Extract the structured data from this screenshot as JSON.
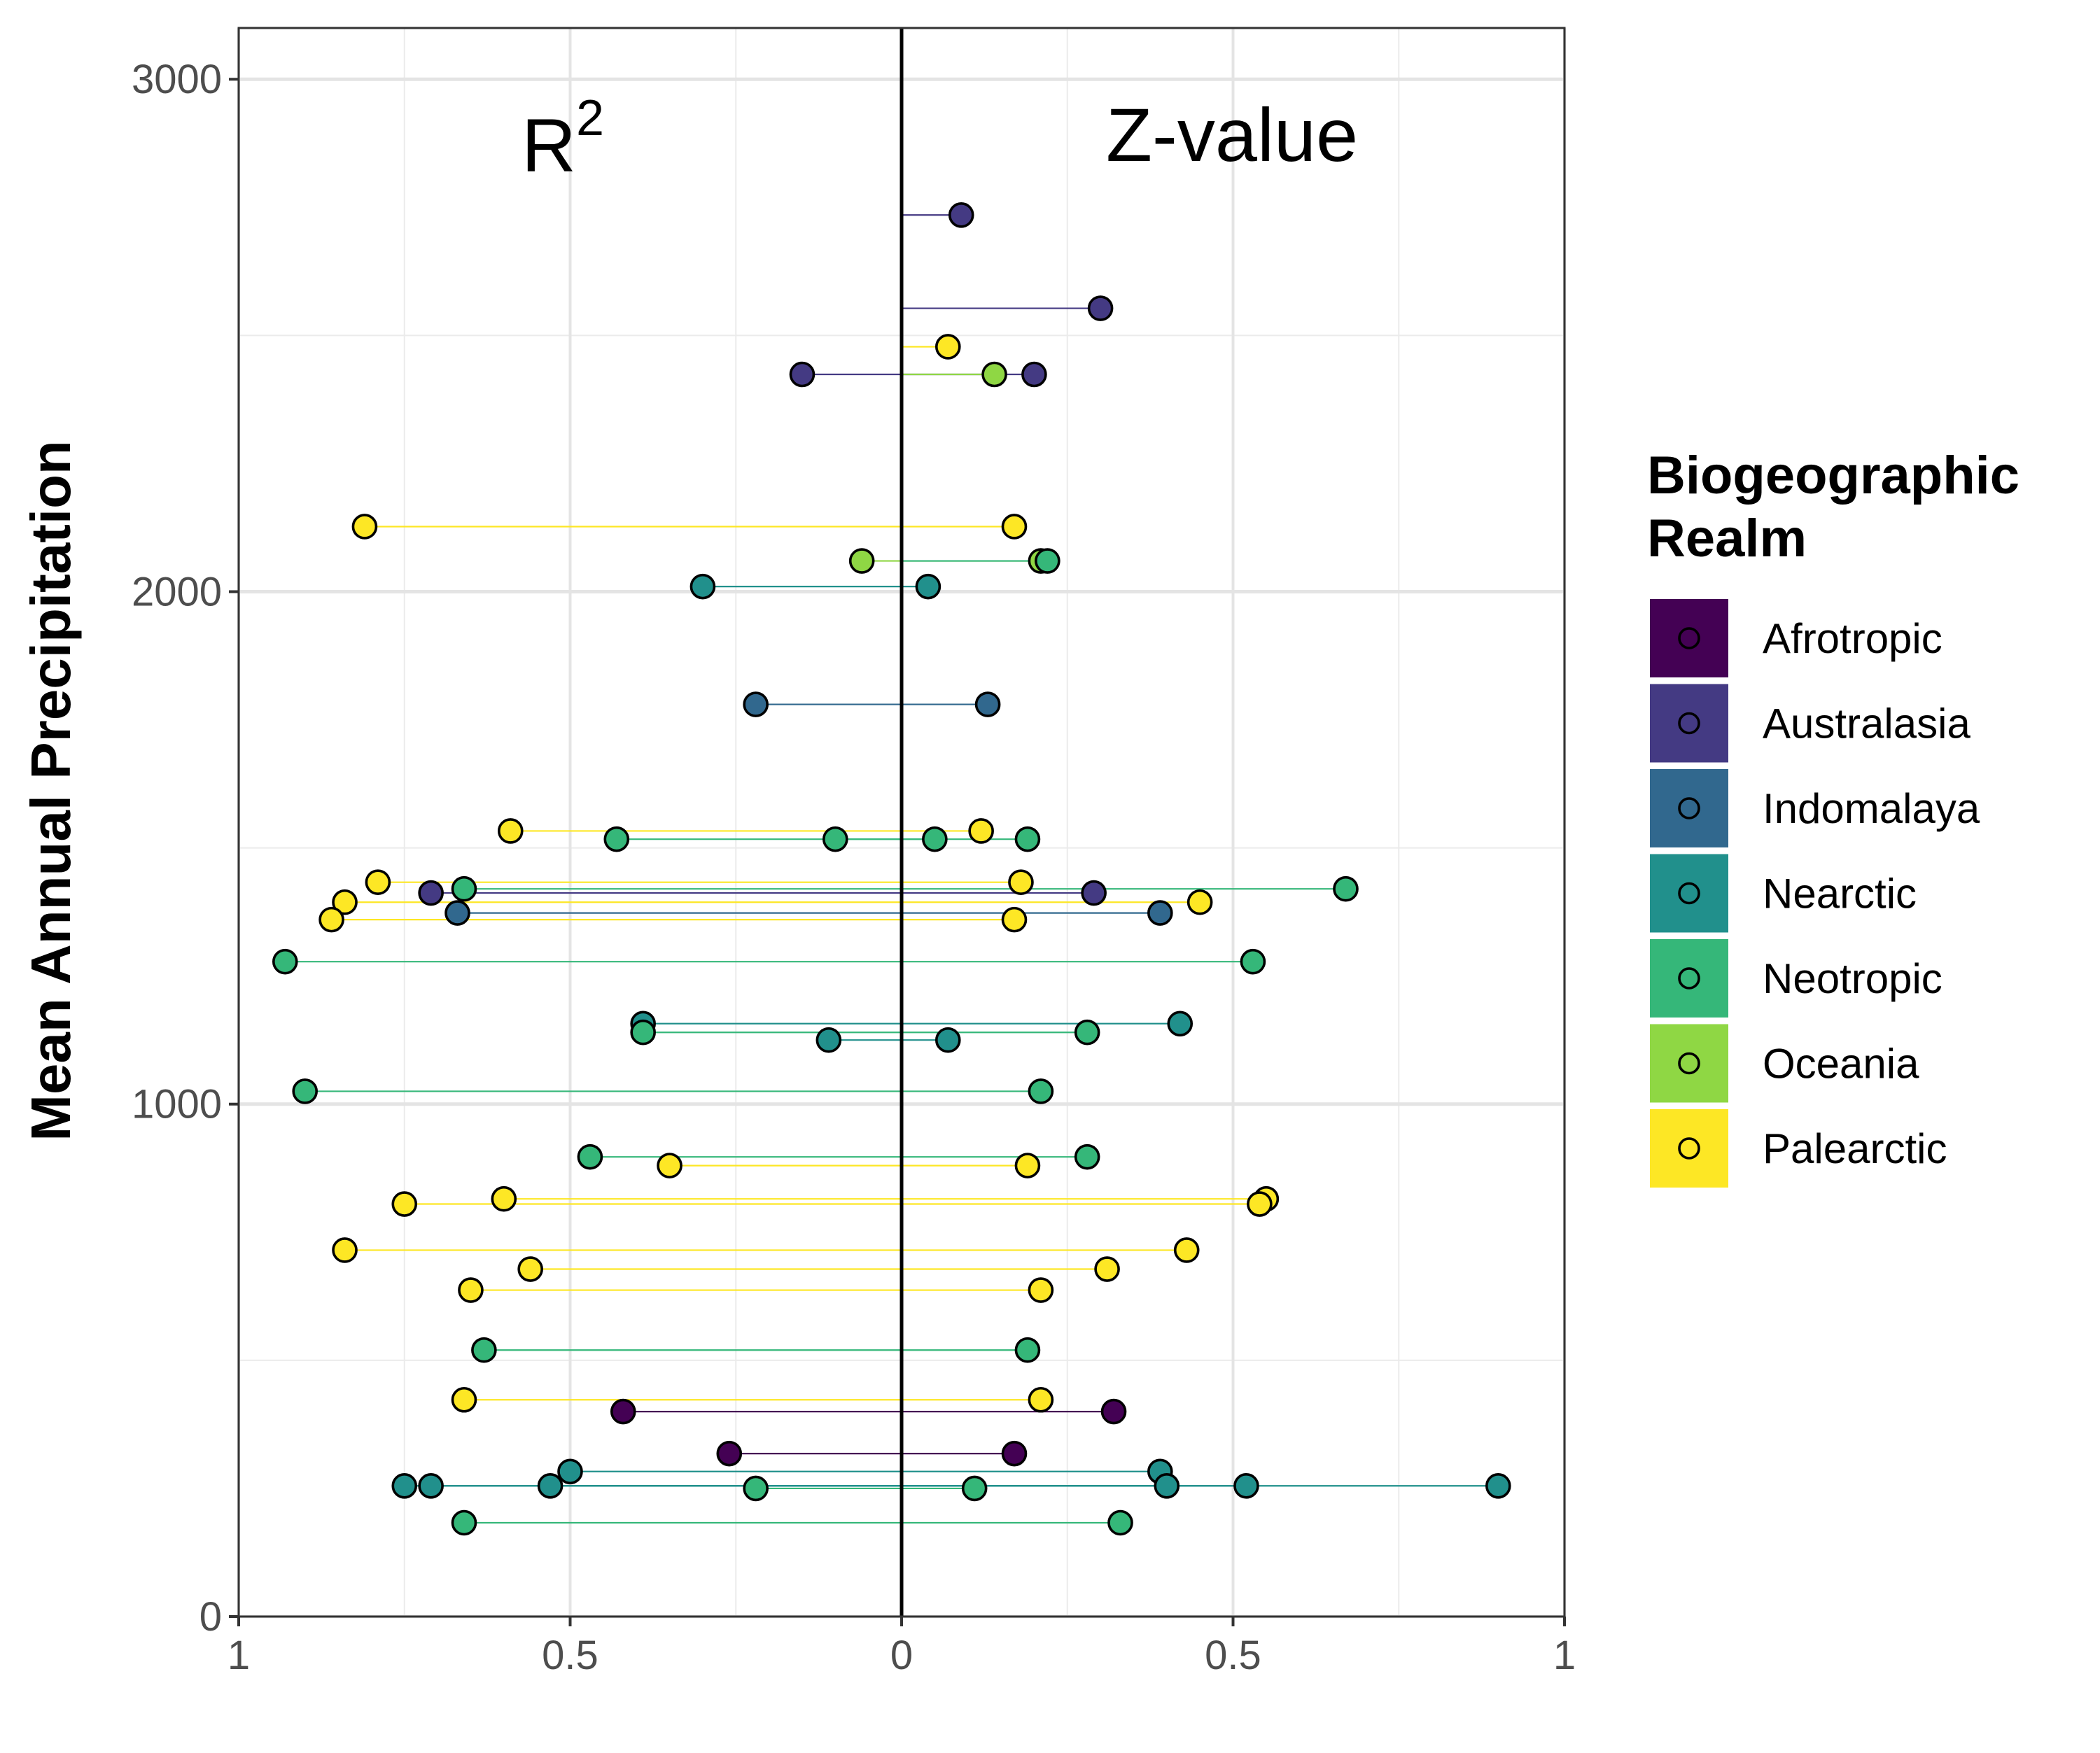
{
  "chart_data": {
    "type": "scatter",
    "title": "",
    "xlabel": "",
    "ylabel": "Mean Annual Precipitation",
    "panel_labels": {
      "left": "R",
      "left_superscript": "2",
      "right": "Z-value"
    },
    "xlim": [
      -1,
      1
    ],
    "ylim": [
      0,
      3100
    ],
    "x_ticks": [
      {
        "value": -1,
        "label": "1"
      },
      {
        "value": -0.5,
        "label": "0.5"
      },
      {
        "value": 0,
        "label": "0"
      },
      {
        "value": 0.5,
        "label": "0.5"
      },
      {
        "value": 1,
        "label": "1"
      }
    ],
    "y_ticks": [
      {
        "value": 0,
        "label": "0"
      },
      {
        "value": 1000,
        "label": "1000"
      },
      {
        "value": 2000,
        "label": "2000"
      },
      {
        "value": 3000,
        "label": "3000"
      }
    ],
    "notes": "Each point pair shows R2 (plotted leftward from 0, value = distance from center) and Z-value (plotted rightward) at the site's mean annual precipitation; a thin line joins each pair.",
    "grid": true,
    "legend": {
      "title_lines": [
        "Biogeographic",
        "Realm"
      ],
      "position": "right"
    },
    "realms": [
      {
        "name": "Afrotropic",
        "color": "#440154"
      },
      {
        "name": "Australasia",
        "color": "#443A83"
      },
      {
        "name": "Indomalaya",
        "color": "#31688E"
      },
      {
        "name": "Nearctic",
        "color": "#21908C"
      },
      {
        "name": "Neotropic",
        "color": "#35B779"
      },
      {
        "name": "Oceania",
        "color": "#8FD744"
      },
      {
        "name": "Palearctic",
        "color": "#FDE725"
      }
    ],
    "pairs": [
      {
        "realm": "Australasia",
        "y": 2735,
        "r2": null,
        "z": 0.09
      },
      {
        "realm": "Australasia",
        "y": 2553,
        "r2": null,
        "z": 0.3
      },
      {
        "realm": "Palearctic",
        "y": 2478,
        "r2": null,
        "z": 0.07
      },
      {
        "realm": "Australasia",
        "y": 2424,
        "r2": 0.15,
        "z": 0.2
      },
      {
        "realm": "Oceania",
        "y": 2424,
        "r2": null,
        "z": 0.14
      },
      {
        "realm": "Palearctic",
        "y": 2127,
        "r2": 0.81,
        "z": 0.17
      },
      {
        "realm": "Oceania",
        "y": 2060,
        "r2": 0.06,
        "z": 0.21
      },
      {
        "realm": "Neotropic",
        "y": 2060,
        "r2": null,
        "z": 0.22
      },
      {
        "realm": "Nearctic",
        "y": 2010,
        "r2": 0.3,
        "z": 0.04
      },
      {
        "realm": "Indomalaya",
        "y": 1780,
        "r2": 0.22,
        "z": 0.13
      },
      {
        "realm": "Palearctic",
        "y": 1533,
        "r2": 0.59,
        "z": 0.12
      },
      {
        "realm": "Neotropic",
        "y": 1517,
        "r2": 0.43,
        "z": 0.19
      },
      {
        "realm": "Neotropic",
        "y": 1517,
        "r2": 0.1,
        "z": 0.05
      },
      {
        "realm": "Palearctic",
        "y": 1433,
        "r2": 0.79,
        "z": 0.18
      },
      {
        "realm": "Neotropic",
        "y": 1420,
        "r2": 0.66,
        "z": 0.67
      },
      {
        "realm": "Australasia",
        "y": 1412,
        "r2": 0.71,
        "z": 0.29
      },
      {
        "realm": "Palearctic",
        "y": 1394,
        "r2": 0.84,
        "z": 0.45
      },
      {
        "realm": "Indomalaya",
        "y": 1373,
        "r2": 0.67,
        "z": 0.39
      },
      {
        "realm": "Palearctic",
        "y": 1360,
        "r2": 0.86,
        "z": 0.17
      },
      {
        "realm": "Neotropic",
        "y": 1278,
        "r2": 0.93,
        "z": 0.53
      },
      {
        "realm": "Nearctic",
        "y": 1157,
        "r2": 0.39,
        "z": 0.42
      },
      {
        "realm": "Neotropic",
        "y": 1140,
        "r2": 0.39,
        "z": 0.28
      },
      {
        "realm": "Nearctic",
        "y": 1125,
        "r2": 0.11,
        "z": 0.07
      },
      {
        "realm": "Neotropic",
        "y": 1025,
        "r2": 0.9,
        "z": 0.21
      },
      {
        "realm": "Neotropic",
        "y": 897,
        "r2": 0.47,
        "z": 0.28
      },
      {
        "realm": "Palearctic",
        "y": 880,
        "r2": 0.35,
        "z": 0.19
      },
      {
        "realm": "Palearctic",
        "y": 815,
        "r2": 0.6,
        "z": 0.55
      },
      {
        "realm": "Palearctic",
        "y": 805,
        "r2": 0.75,
        "z": 0.54
      },
      {
        "realm": "Palearctic",
        "y": 715,
        "r2": 0.84,
        "z": 0.43
      },
      {
        "realm": "Palearctic",
        "y": 678,
        "r2": 0.56,
        "z": 0.31
      },
      {
        "realm": "Palearctic",
        "y": 637,
        "r2": 0.65,
        "z": 0.21
      },
      {
        "realm": "Neotropic",
        "y": 520,
        "r2": 0.63,
        "z": 0.19
      },
      {
        "realm": "Palearctic",
        "y": 423,
        "r2": 0.66,
        "z": 0.21
      },
      {
        "realm": "Afrotropic",
        "y": 400,
        "r2": 0.42,
        "z": 0.32
      },
      {
        "realm": "Afrotropic",
        "y": 318,
        "r2": 0.26,
        "z": 0.17
      },
      {
        "realm": "Nearctic",
        "y": 283,
        "r2": 0.5,
        "z": 0.39
      },
      {
        "realm": "Nearctic",
        "y": 255,
        "r2": 0.75,
        "z": 0.9
      },
      {
        "realm": "Nearctic",
        "y": 255,
        "r2": 0.71,
        "z": 0.4
      },
      {
        "realm": "Nearctic",
        "y": 255,
        "r2": 0.53,
        "z": 0.52
      },
      {
        "realm": "Neotropic",
        "y": 250,
        "r2": 0.22,
        "z": 0.11
      },
      {
        "realm": "Neotropic",
        "y": 183,
        "r2": 0.66,
        "z": 0.33
      }
    ]
  }
}
